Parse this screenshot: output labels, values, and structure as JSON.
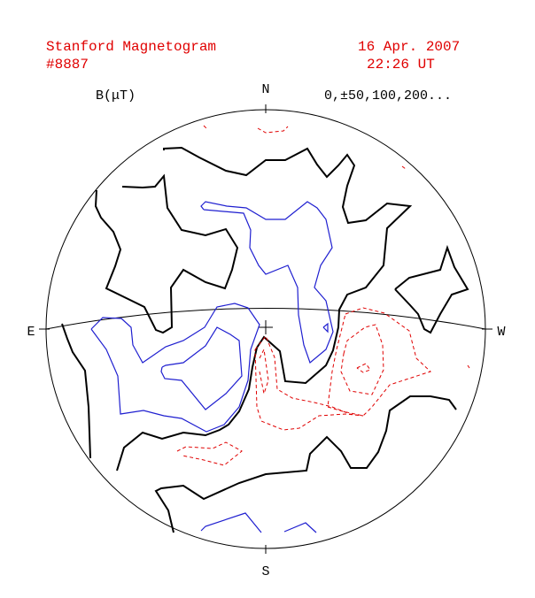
{
  "header": {
    "title": "Stanford Magnetogram",
    "number": "#8887",
    "date": "16 Apr. 2007",
    "time": "22:26 UT"
  },
  "plot": {
    "unit_label": "B(μT)",
    "levels": "0,±50,100,200...",
    "north": "N",
    "south": "S",
    "east": "E",
    "west": "W"
  }
}
